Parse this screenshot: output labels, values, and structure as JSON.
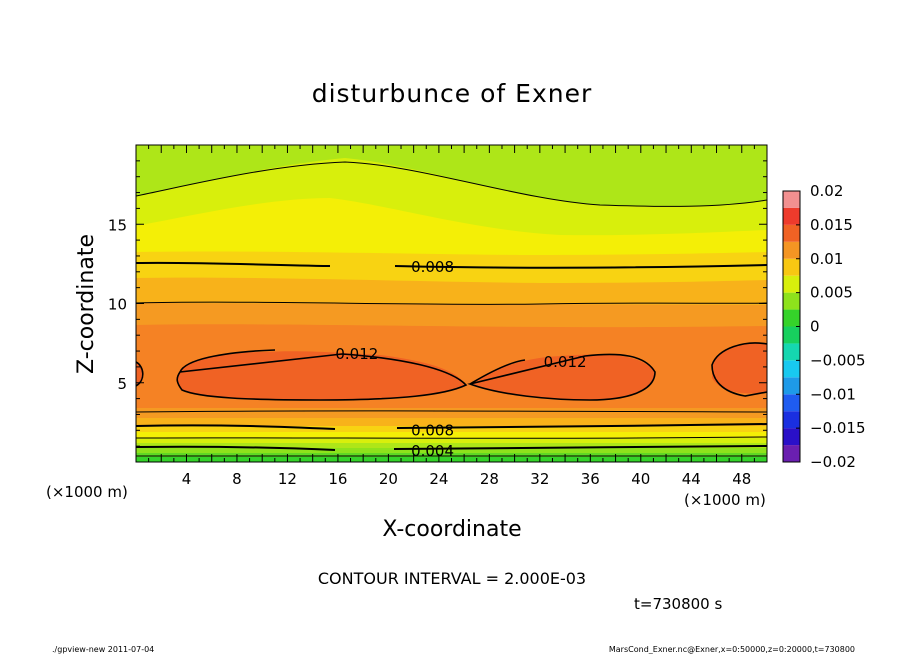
{
  "chart_data": {
    "type": "heatmap",
    "title": "disturbunce of Exner",
    "xlabel": "X-coordinate",
    "ylabel": "Z-coordinate",
    "x_unit": "(×1000 m)",
    "z_unit": "(×1000 m)",
    "xlim": [
      0,
      50
    ],
    "ylim": [
      0,
      20
    ],
    "x_ticks": [
      "4",
      "8",
      "12",
      "16",
      "20",
      "24",
      "28",
      "32",
      "36",
      "40",
      "44",
      "48"
    ],
    "y_ticks": [
      "5",
      "10",
      "15"
    ],
    "colorbar": {
      "ticks": [
        "0.02",
        "0.015",
        "0.01",
        "0.005",
        "0",
        "−0.005",
        "−0.01",
        "−0.015",
        "−0.02"
      ],
      "range": [
        -0.02,
        0.02
      ],
      "levels": [
        {
          "from": -0.02,
          "to": -0.0175,
          "color": "#6a1fb0"
        },
        {
          "from": -0.0175,
          "to": -0.015,
          "color": "#2a10c8"
        },
        {
          "from": -0.015,
          "to": -0.0125,
          "color": "#1a2fe0"
        },
        {
          "from": -0.0125,
          "to": -0.01,
          "color": "#1f5cf0"
        },
        {
          "from": -0.01,
          "to": -0.0075,
          "color": "#1e9ae8"
        },
        {
          "from": -0.0075,
          "to": -0.005,
          "color": "#18c9f0"
        },
        {
          "from": -0.005,
          "to": -0.0025,
          "color": "#15d7b0"
        },
        {
          "from": -0.0025,
          "to": 0.0,
          "color": "#17d05e"
        },
        {
          "from": 0.0,
          "to": 0.0025,
          "color": "#35d32a"
        },
        {
          "from": 0.0025,
          "to": 0.005,
          "color": "#8ee21c"
        },
        {
          "from": 0.005,
          "to": 0.0075,
          "color": "#d8ef0c"
        },
        {
          "from": 0.0075,
          "to": 0.01,
          "color": "#f8c812"
        },
        {
          "from": 0.01,
          "to": 0.0125,
          "color": "#f49523"
        },
        {
          "from": 0.0125,
          "to": 0.015,
          "color": "#f06224"
        },
        {
          "from": 0.015,
          "to": 0.0175,
          "color": "#ee3b2c"
        },
        {
          "from": 0.0175,
          "to": 0.02,
          "color": "#f29090"
        }
      ]
    },
    "contour_labels": [
      {
        "text": "0.008",
        "x": 23.5,
        "z": 12.3
      },
      {
        "text": "0.012",
        "x": 17.5,
        "z": 6.8
      },
      {
        "text": "0.012",
        "x": 34.0,
        "z": 6.3
      },
      {
        "text": "0.008",
        "x": 23.5,
        "z": 2.0
      },
      {
        "text": "0.004",
        "x": 23.5,
        "z": 0.7
      }
    ],
    "contour_interval": "CONTOUR INTERVAL = 2.000E-03",
    "time": "t=730800 s"
  },
  "footer": {
    "left": "./gpview-new   2011-07-04",
    "right": "MarsCond_Exner.nc@Exner,x=0:50000,z=0:20000,t=730800"
  }
}
